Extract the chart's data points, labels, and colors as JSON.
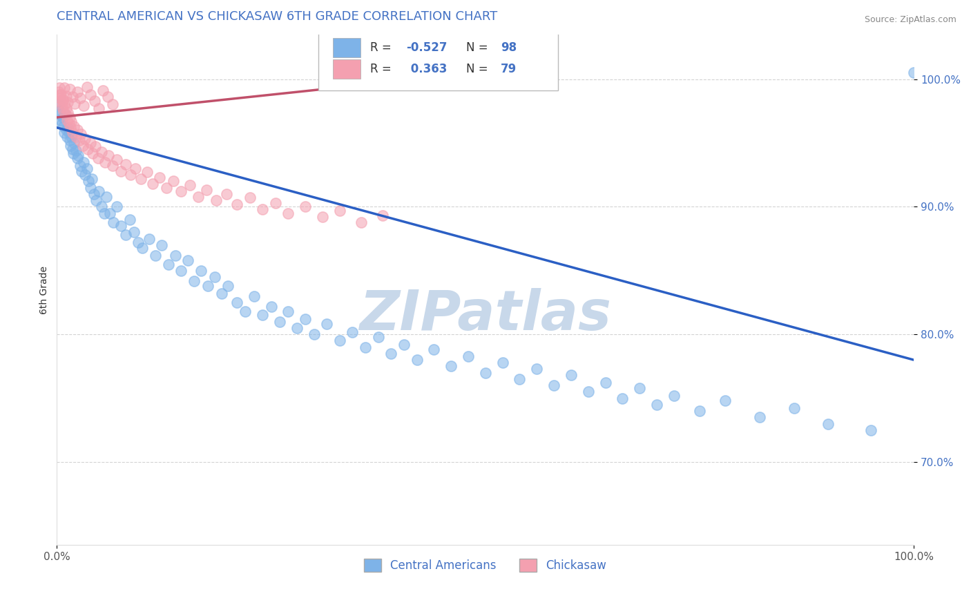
{
  "title": "CENTRAL AMERICAN VS CHICKASAW 6TH GRADE CORRELATION CHART",
  "source_text": "Source: ZipAtlas.com",
  "ylabel": "6th Grade",
  "r_blue": -0.527,
  "n_blue": 98,
  "r_pink": 0.363,
  "n_pink": 79,
  "xlim": [
    0.0,
    1.0
  ],
  "ylim": [
    0.635,
    1.035
  ],
  "yticks": [
    0.7,
    0.8,
    0.9,
    1.0
  ],
  "ytick_labels": [
    "70.0%",
    "80.0%",
    "90.0%",
    "100.0%"
  ],
  "blue_color": "#7EB3E8",
  "pink_color": "#F4A0B0",
  "blue_line_color": "#2B5FC4",
  "pink_line_color": "#C0506A",
  "watermark": "ZIPatlas",
  "watermark_color": "#C8D8EA",
  "title_color": "#4472C4",
  "grid_color": "#C8C8C8",
  "blue_scatter_x": [
    0.002,
    0.003,
    0.004,
    0.005,
    0.006,
    0.007,
    0.008,
    0.009,
    0.01,
    0.011,
    0.012,
    0.013,
    0.014,
    0.015,
    0.016,
    0.017,
    0.018,
    0.019,
    0.02,
    0.022,
    0.024,
    0.025,
    0.027,
    0.029,
    0.031,
    0.033,
    0.035,
    0.037,
    0.039,
    0.041,
    0.043,
    0.046,
    0.049,
    0.052,
    0.055,
    0.058,
    0.062,
    0.066,
    0.07,
    0.075,
    0.08,
    0.085,
    0.09,
    0.095,
    0.1,
    0.108,
    0.115,
    0.122,
    0.13,
    0.138,
    0.145,
    0.153,
    0.16,
    0.168,
    0.176,
    0.184,
    0.192,
    0.2,
    0.21,
    0.22,
    0.23,
    0.24,
    0.25,
    0.26,
    0.27,
    0.28,
    0.29,
    0.3,
    0.315,
    0.33,
    0.345,
    0.36,
    0.375,
    0.39,
    0.405,
    0.42,
    0.44,
    0.46,
    0.48,
    0.5,
    0.52,
    0.54,
    0.56,
    0.58,
    0.6,
    0.62,
    0.64,
    0.66,
    0.68,
    0.7,
    0.72,
    0.75,
    0.78,
    0.82,
    0.86,
    0.9,
    0.95,
    1.0
  ],
  "blue_scatter_y": [
    0.98,
    0.975,
    0.972,
    0.968,
    0.965,
    0.97,
    0.963,
    0.958,
    0.972,
    0.96,
    0.955,
    0.962,
    0.958,
    0.952,
    0.948,
    0.955,
    0.945,
    0.942,
    0.95,
    0.944,
    0.938,
    0.94,
    0.932,
    0.928,
    0.935,
    0.925,
    0.93,
    0.92,
    0.915,
    0.922,
    0.91,
    0.905,
    0.912,
    0.9,
    0.895,
    0.908,
    0.895,
    0.888,
    0.9,
    0.885,
    0.878,
    0.89,
    0.88,
    0.872,
    0.868,
    0.875,
    0.862,
    0.87,
    0.855,
    0.862,
    0.85,
    0.858,
    0.842,
    0.85,
    0.838,
    0.845,
    0.832,
    0.838,
    0.825,
    0.818,
    0.83,
    0.815,
    0.822,
    0.81,
    0.818,
    0.805,
    0.812,
    0.8,
    0.808,
    0.795,
    0.802,
    0.79,
    0.798,
    0.785,
    0.792,
    0.78,
    0.788,
    0.775,
    0.783,
    0.77,
    0.778,
    0.765,
    0.773,
    0.76,
    0.768,
    0.755,
    0.762,
    0.75,
    0.758,
    0.745,
    0.752,
    0.74,
    0.748,
    0.735,
    0.742,
    0.73,
    0.725,
    1.005
  ],
  "pink_scatter_x": [
    0.002,
    0.003,
    0.004,
    0.005,
    0.006,
    0.007,
    0.008,
    0.009,
    0.01,
    0.011,
    0.012,
    0.013,
    0.014,
    0.015,
    0.016,
    0.017,
    0.018,
    0.02,
    0.022,
    0.024,
    0.026,
    0.028,
    0.03,
    0.033,
    0.036,
    0.039,
    0.042,
    0.045,
    0.048,
    0.052,
    0.056,
    0.06,
    0.065,
    0.07,
    0.075,
    0.08,
    0.086,
    0.092,
    0.098,
    0.105,
    0.112,
    0.12,
    0.128,
    0.136,
    0.145,
    0.155,
    0.165,
    0.175,
    0.186,
    0.198,
    0.21,
    0.225,
    0.24,
    0.255,
    0.27,
    0.29,
    0.31,
    0.33,
    0.355,
    0.38,
    0.003,
    0.005,
    0.007,
    0.009,
    0.011,
    0.013,
    0.015,
    0.018,
    0.021,
    0.024,
    0.027,
    0.031,
    0.035,
    0.039,
    0.044,
    0.049,
    0.054,
    0.059,
    0.065
  ],
  "pink_scatter_y": [
    0.99,
    0.985,
    0.988,
    0.982,
    0.978,
    0.984,
    0.975,
    0.98,
    0.972,
    0.977,
    0.968,
    0.974,
    0.965,
    0.97,
    0.962,
    0.967,
    0.958,
    0.963,
    0.955,
    0.96,
    0.952,
    0.957,
    0.948,
    0.953,
    0.945,
    0.95,
    0.942,
    0.947,
    0.938,
    0.943,
    0.935,
    0.94,
    0.932,
    0.937,
    0.928,
    0.933,
    0.925,
    0.93,
    0.922,
    0.927,
    0.918,
    0.923,
    0.915,
    0.92,
    0.912,
    0.917,
    0.908,
    0.913,
    0.905,
    0.91,
    0.902,
    0.907,
    0.898,
    0.903,
    0.895,
    0.9,
    0.892,
    0.897,
    0.888,
    0.893,
    0.993,
    0.988,
    0.983,
    0.993,
    0.987,
    0.982,
    0.992,
    0.986,
    0.981,
    0.99,
    0.985,
    0.979,
    0.994,
    0.988,
    0.983,
    0.977,
    0.991,
    0.986,
    0.98
  ],
  "blue_trendline_x": [
    0.0,
    1.0
  ],
  "blue_trendline_y": [
    0.962,
    0.78
  ],
  "pink_trendline_x": [
    0.0,
    0.45
  ],
  "pink_trendline_y": [
    0.97,
    1.002
  ]
}
